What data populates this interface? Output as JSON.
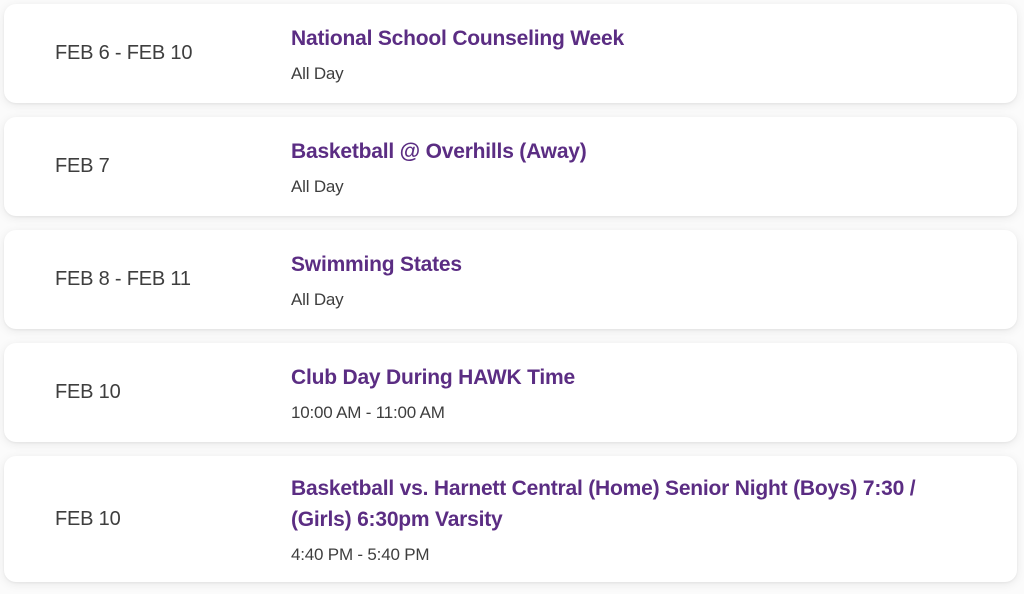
{
  "theme": {
    "accent_purple": "#5b2d83",
    "text_gray": "#3e3e3e",
    "card_background": "#ffffff",
    "page_background": "#fbfbfb"
  },
  "events": [
    {
      "date": "FEB 6 - FEB 10",
      "title": "National School Counseling Week",
      "time": "All Day"
    },
    {
      "date": "FEB 7",
      "title": "Basketball @ Overhills (Away)",
      "time": "All Day"
    },
    {
      "date": "FEB 8 - FEB 11",
      "title": "Swimming States",
      "time": "All Day"
    },
    {
      "date": "FEB 10",
      "title": "Club Day During HAWK Time",
      "time": "10:00 AM - 11:00 AM"
    },
    {
      "date": "FEB 10",
      "title": "Basketball vs. Harnett Central (Home) Senior Night (Boys) 7:30 / (Girls) 6:30pm Varsity",
      "time": "4:40 PM - 5:40 PM"
    }
  ]
}
